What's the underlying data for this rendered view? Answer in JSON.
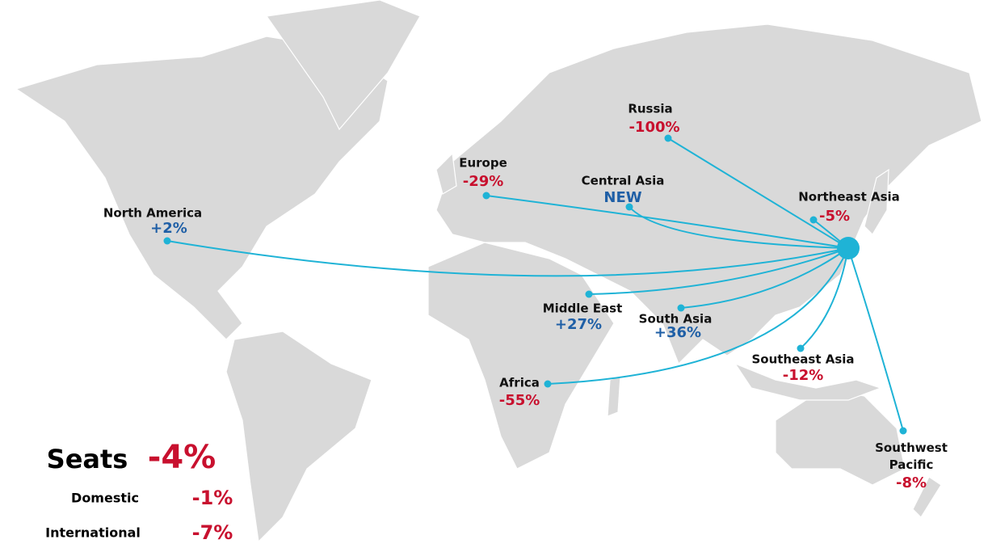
{
  "routes": [
    {
      "name": "Russia",
      "change": "-100%",
      "color": "#c8102e"
    },
    {
      "name": "Europe",
      "change": "-29%",
      "color": "#c8102e"
    },
    {
      "name": "Central Asia",
      "change": "NEW",
      "color": "#1f5fa6"
    },
    {
      "name": "Northeast Asia",
      "change": "-5%",
      "color": "#c8102e"
    },
    {
      "name": "North America",
      "change": "+2%",
      "color": "#1f5fa6"
    },
    {
      "name": "Middle East",
      "change": "+27%",
      "color": "#1f5fa6"
    },
    {
      "name": "South Asia",
      "change": "+36%",
      "color": "#1f5fa6"
    },
    {
      "name": "Southeast Asia",
      "change": "-12%",
      "color": "#c8102e"
    },
    {
      "name": "Africa",
      "change": "-55%",
      "color": "#c8102e"
    },
    {
      "name": "Southwest Pacific",
      "change": "-8%",
      "color": "#c8102e"
    }
  ],
  "summary": {
    "label": "Seats",
    "change": "-4%",
    "color": "#c8102e",
    "rows": [
      {
        "label": "Domestic",
        "change": "-1%"
      },
      {
        "label": "International",
        "change": "-7%"
      }
    ]
  }
}
